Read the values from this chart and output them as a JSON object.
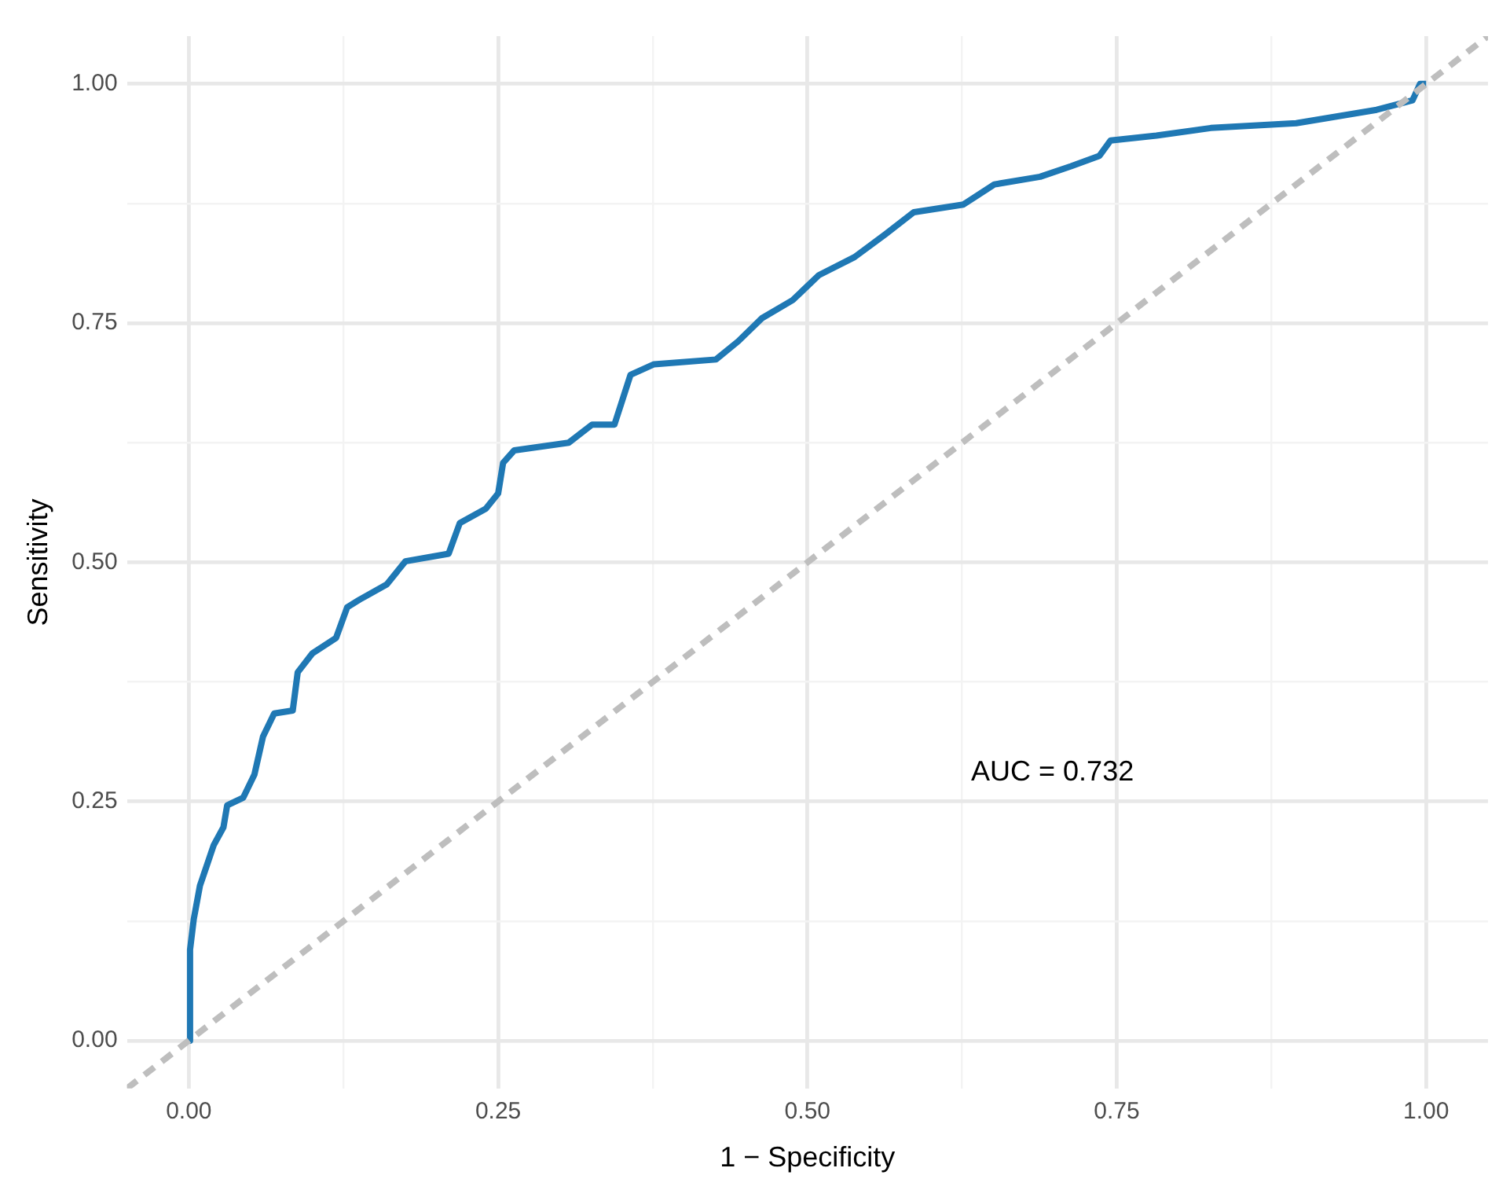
{
  "chart_data": {
    "type": "line",
    "xlabel": "1 − Specificity",
    "ylabel": "Sensitivity",
    "xlim": [
      -0.05,
      1.05
    ],
    "ylim": [
      -0.05,
      1.05
    ],
    "xticks": [
      {
        "value": 0,
        "label": "0.00"
      },
      {
        "value": 0.125,
        "label": null
      },
      {
        "value": 0.25,
        "label": "0.25"
      },
      {
        "value": 0.375,
        "label": null
      },
      {
        "value": 0.5,
        "label": "0.50"
      },
      {
        "value": 0.625,
        "label": null
      },
      {
        "value": 0.75,
        "label": "0.75"
      },
      {
        "value": 0.875,
        "label": null
      },
      {
        "value": 1,
        "label": "1.00"
      }
    ],
    "yticks": [
      {
        "value": 0,
        "label": "0.00"
      },
      {
        "value": 0.125,
        "label": null
      },
      {
        "value": 0.25,
        "label": "0.25"
      },
      {
        "value": 0.375,
        "label": null
      },
      {
        "value": 0.5,
        "label": "0.50"
      },
      {
        "value": 0.625,
        "label": null
      },
      {
        "value": 0.75,
        "label": "0.75"
      },
      {
        "value": 0.875,
        "label": null
      },
      {
        "value": 1,
        "label": "1.00"
      }
    ],
    "grid": true,
    "legend": false,
    "marker": "none",
    "annotations": [
      "AUC = 0.732"
    ],
    "series": [
      {
        "color": "#bebebe",
        "line_style": "dashed",
        "x": [
          -0.05,
          1.05
        ],
        "values": [
          -0.05,
          1.05
        ]
      },
      {
        "color": "#1f78b4",
        "line_style": "solid",
        "x": [
          0,
          0.001,
          0.004,
          0.009,
          0.014,
          0.02,
          0.028,
          0.031,
          0.044,
          0.053,
          0.06,
          0.069,
          0.084,
          0.088,
          0.1,
          0.119,
          0.128,
          0.138,
          0.16,
          0.175,
          0.21,
          0.219,
          0.24,
          0.25,
          0.254,
          0.263,
          0.307,
          0.326,
          0.344,
          0.357,
          0.376,
          0.426,
          0.444,
          0.463,
          0.488,
          0.509,
          0.538,
          0.563,
          0.586,
          0.626,
          0.651,
          0.688,
          0.713,
          0.736,
          0.745,
          0.782,
          0.826,
          0.895,
          0.96,
          0.989,
          0.995,
          1
        ],
        "values": [
          0,
          0.095,
          0.127,
          0.162,
          0.181,
          0.204,
          0.223,
          0.246,
          0.254,
          0.278,
          0.318,
          0.342,
          0.345,
          0.385,
          0.405,
          0.421,
          0.453,
          0.461,
          0.477,
          0.501,
          0.509,
          0.541,
          0.556,
          0.572,
          0.604,
          0.617,
          0.625,
          0.644,
          0.644,
          0.696,
          0.707,
          0.712,
          0.731,
          0.755,
          0.774,
          0.8,
          0.819,
          0.843,
          0.866,
          0.874,
          0.895,
          0.903,
          0.914,
          0.925,
          0.941,
          0.946,
          0.954,
          0.959,
          0.973,
          0.983,
          1,
          1
        ]
      }
    ]
  }
}
